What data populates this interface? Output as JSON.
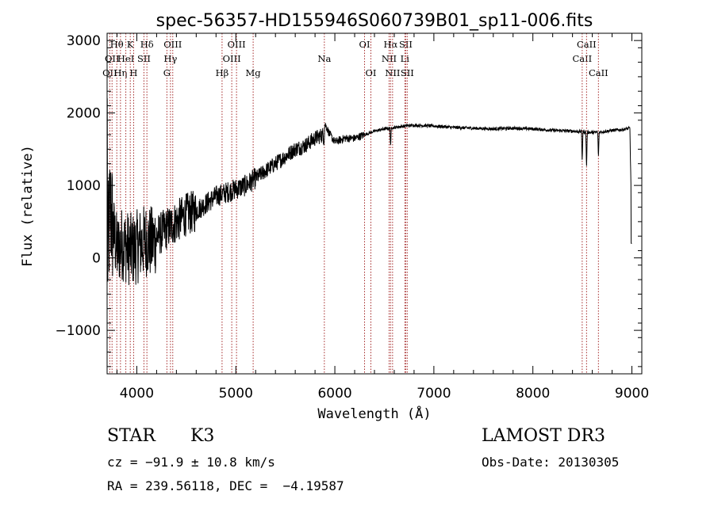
{
  "chart_data": {
    "type": "line",
    "title": "spec-56357-HD155946S060739B01_sp11-006.fits",
    "xlabel": "Wavelength (Å)",
    "ylabel": "Flux (relative)",
    "xlim": [
      3700,
      9100
    ],
    "ylim": [
      -1600,
      3100
    ],
    "xticks": [
      4000,
      5000,
      6000,
      7000,
      8000,
      9000
    ],
    "yticks": [
      -1000,
      0,
      1000,
      2000,
      3000
    ],
    "xtick_labels": [
      "4000",
      "5000",
      "6000",
      "7000",
      "8000",
      "9000"
    ],
    "ytick_labels": [
      "−1000",
      "0",
      "1000",
      "2000",
      "3000"
    ],
    "series": [
      {
        "name": "spectrum",
        "anchors_x": [
          3700,
          3730,
          3760,
          3800,
          3850,
          3900,
          3950,
          4000,
          4050,
          4100,
          4150,
          4200,
          4300,
          4400,
          4500,
          4600,
          4700,
          4800,
          4900,
          5000,
          5100,
          5200,
          5300,
          5400,
          5500,
          5600,
          5700,
          5800,
          5880,
          5900,
          5950,
          6000,
          6100,
          6200,
          6300,
          6400,
          6500,
          6600,
          6700,
          6800,
          7000,
          7200,
          7400,
          7600,
          7800,
          8000,
          8200,
          8400,
          8500,
          8600,
          8700,
          8800,
          8900,
          8980,
          9000
        ],
        "anchors_y": [
          -200,
          700,
          400,
          100,
          200,
          150,
          100,
          150,
          200,
          250,
          200,
          300,
          400,
          500,
          600,
          650,
          750,
          850,
          900,
          950,
          1000,
          1100,
          1200,
          1300,
          1400,
          1500,
          1550,
          1650,
          1700,
          1850,
          1700,
          1600,
          1650,
          1650,
          1700,
          1750,
          1780,
          1800,
          1820,
          1830,
          1820,
          1800,
          1790,
          1780,
          1790,
          1780,
          1760,
          1750,
          1740,
          1730,
          1740,
          1760,
          1770,
          1790,
          200
        ],
        "noise_note": "high-frequency noise strongest below 4500 A, decreasing redward"
      }
    ],
    "absorption_features": [
      {
        "x": 8498,
        "depth": 400
      },
      {
        "x": 8542,
        "depth": 500
      },
      {
        "x": 8662,
        "depth": 350
      },
      {
        "x": 6563,
        "depth": 250
      },
      {
        "x": 5890,
        "depth": 150
      }
    ],
    "reference_lines": [
      {
        "x": 3727,
        "label": "OII",
        "row": 2
      },
      {
        "x": 3750,
        "label": "OII",
        "row": 1
      },
      {
        "x": 3798,
        "label": "Hθ",
        "row": 0
      },
      {
        "x": 3835,
        "label": "Hη",
        "row": 2
      },
      {
        "x": 3889,
        "label": "HeI",
        "row": 1
      },
      {
        "x": 3934,
        "label": "K",
        "row": 0
      },
      {
        "x": 3968,
        "label": "H",
        "row": 2
      },
      {
        "x": 4072,
        "label": "SII",
        "row": 1
      },
      {
        "x": 4102,
        "label": "Hδ",
        "row": 0
      },
      {
        "x": 4304,
        "label": "G",
        "row": 2
      },
      {
        "x": 4340,
        "label": "Hγ",
        "row": 1
      },
      {
        "x": 4363,
        "label": "OIII",
        "row": 0
      },
      {
        "x": 4861,
        "label": "Hβ",
        "row": 2
      },
      {
        "x": 4959,
        "label": "OIII",
        "row": 1
      },
      {
        "x": 5007,
        "label": "OIII",
        "row": 0
      },
      {
        "x": 5175,
        "label": "Mg",
        "row": 2
      },
      {
        "x": 5894,
        "label": "Na",
        "row": 1
      },
      {
        "x": 6300,
        "label": "OI",
        "row": 0
      },
      {
        "x": 6364,
        "label": "OI",
        "row": 2
      },
      {
        "x": 6548,
        "label": "NII",
        "row": 1
      },
      {
        "x": 6563,
        "label": "Hα",
        "row": 0
      },
      {
        "x": 6583,
        "label": "NII",
        "row": 2
      },
      {
        "x": 6707,
        "label": "Li",
        "row": 1
      },
      {
        "x": 6716,
        "label": "SII",
        "row": 0
      },
      {
        "x": 6731,
        "label": "SII",
        "row": 2
      },
      {
        "x": 8498,
        "label": "CaII",
        "row": 1
      },
      {
        "x": 8542,
        "label": "CaII",
        "row": 0
      },
      {
        "x": 8662,
        "label": "CaII",
        "row": 2
      }
    ]
  },
  "footer": {
    "class": "STAR",
    "subclass": "K3",
    "survey": "LAMOST DR3",
    "cz": "cz = −91.9 ± 10.8 km/s",
    "obs_date": "Obs-Date: 20130305",
    "coords": "RA = 239.56118, DEC =  −4.19587"
  },
  "colors": {
    "spectrum": "#000000",
    "reference_line": "#a52a2a",
    "axis": "#000000"
  }
}
